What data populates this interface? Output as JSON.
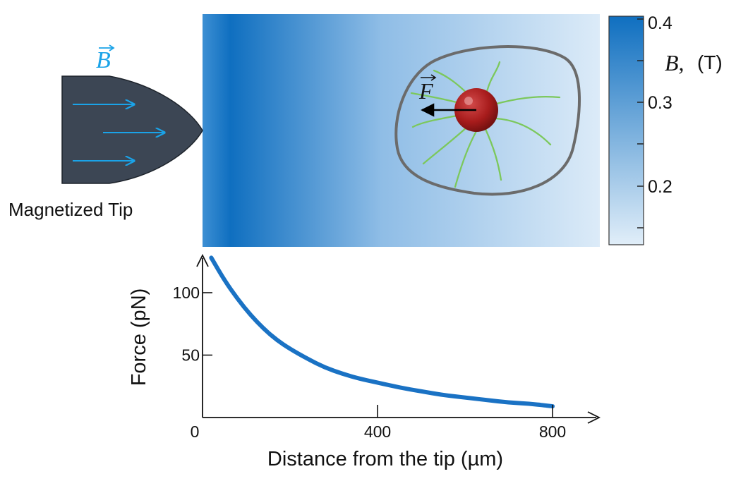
{
  "tip": {
    "label": "Magnetized Tip",
    "field_symbol": "B",
    "arrow_color": "#1aa3e8",
    "body_color": "#3c4654"
  },
  "field_map": {
    "colorbar_title_symbol": "B,",
    "colorbar_title_unit": "(T)",
    "colorbar_ticks": [
      "0.4",
      "0.3",
      "0.2"
    ],
    "gradient_dark": "#0f6fc0",
    "gradient_light": "#dcebf8"
  },
  "cell": {
    "force_symbol": "F",
    "membrane_color": "#6b6b6b",
    "filament_color": "#7cc85c",
    "bead_color": "#a81c1c"
  },
  "chart_data": {
    "type": "line",
    "xlabel": "Distance from the tip (µm)",
    "ylabel": "Force (pN)",
    "x_ticks": [
      "0",
      "400",
      "800"
    ],
    "y_ticks": [
      "50",
      "100"
    ],
    "xlim": [
      0,
      900
    ],
    "ylim": [
      0,
      135
    ],
    "line_color": "#1a72c4",
    "series": [
      {
        "x": [
          20,
          50,
          80,
          110,
          140,
          170,
          200,
          240,
          280,
          320,
          360,
          400,
          450,
          500,
          550,
          600,
          650,
          700,
          750,
          800
        ],
        "y": [
          128,
          110,
          95,
          82,
          71,
          62,
          55,
          47,
          40,
          35,
          31,
          28,
          24,
          21,
          18,
          16,
          14,
          12,
          11,
          9
        ]
      }
    ]
  }
}
